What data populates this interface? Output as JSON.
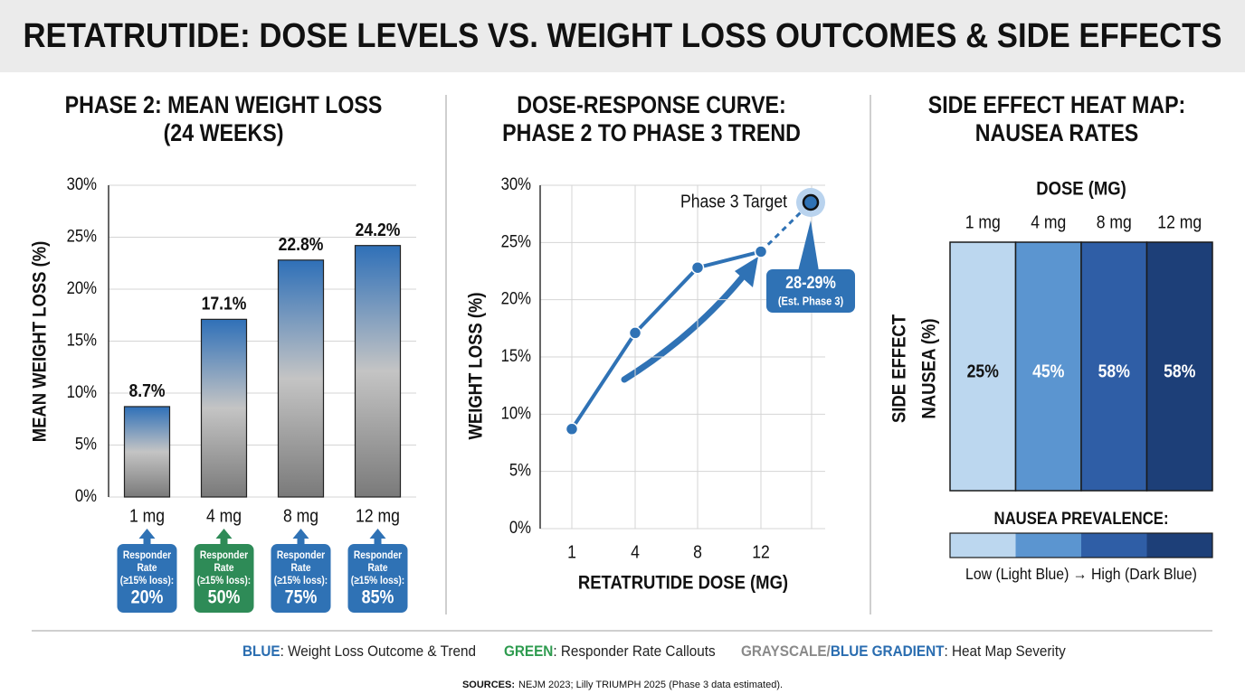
{
  "title": "RETATRUTIDE: DOSE LEVELS VS. WEIGHT LOSS OUTCOMES & SIDE EFFECTS",
  "chart_data": [
    {
      "type": "bar",
      "title": [
        "PHASE 2: MEAN WEIGHT LOSS",
        "(24 WEEKS)"
      ],
      "categories": [
        "1 mg",
        "4 mg",
        "8 mg",
        "12 mg"
      ],
      "values": [
        8.7,
        17.1,
        22.8,
        24.2
      ],
      "value_labels": [
        "8.7%",
        "17.1%",
        "22.8%",
        "24.2%"
      ],
      "ylabel": "MEAN WEIGHT LOSS (%)",
      "ylim": [
        0,
        30
      ],
      "yticks": [
        {
          "value": 0,
          "label": "0%"
        },
        {
          "value": 5,
          "label": "5%"
        },
        {
          "value": 10,
          "label": "10%"
        },
        {
          "value": 15,
          "label": "15%"
        },
        {
          "value": 20,
          "label": "20%"
        },
        {
          "value": 25,
          "label": "25%"
        },
        {
          "value": 30,
          "label": "30%"
        }
      ],
      "grid": true,
      "color": "#2f70b8",
      "callouts": {
        "label": [
          "Responder",
          "Rate",
          "(≥15% loss):"
        ],
        "values": [
          20,
          50,
          75,
          85
        ],
        "value_labels": [
          "20%",
          "50%",
          "75%",
          "85%"
        ],
        "colors": [
          "#2f72b5",
          "#2e8b57",
          "#2f72b5",
          "#2f72b5"
        ]
      }
    },
    {
      "type": "line",
      "title": [
        "DOSE-RESPONSE CURVE:",
        "PHASE 2 TO PHASE 3 TREND"
      ],
      "categories": [
        "1",
        "4",
        "8",
        "12"
      ],
      "values": [
        8.7,
        17.1,
        22.8,
        24.2
      ],
      "color": "#2f72b5",
      "xlabel": "RETATRUTIDE DOSE (MG)",
      "ylabel": "WEIGHT LOSS (%)",
      "ylim": [
        0,
        30
      ],
      "yticks": [
        {
          "value": 0,
          "label": "0%"
        },
        {
          "value": 5,
          "label": "5%"
        },
        {
          "value": 10,
          "label": "10%"
        },
        {
          "value": 15,
          "label": "15%"
        },
        {
          "value": 20,
          "label": "20%"
        },
        {
          "value": 25,
          "label": "25%"
        },
        {
          "value": 30,
          "label": "30%"
        }
      ],
      "grid": true,
      "projection": {
        "label": "Phase 3 Target",
        "value": 28.5,
        "value_label": "28-29%",
        "note": "(Est. Phase 3)"
      }
    },
    {
      "type": "heatmap",
      "title": [
        "SIDE EFFECT HEAT MAP:",
        "NAUSEA RATES"
      ],
      "xlabel": "DOSE (MG)",
      "categories": [
        "1 mg",
        "4 mg",
        "8 mg",
        "12 mg"
      ],
      "ylabel": [
        "SIDE EFFECT",
        "NAUSEA (%)"
      ],
      "values": [
        25,
        45,
        58,
        58
      ],
      "value_labels": [
        "25%",
        "45%",
        "58%",
        "58%"
      ],
      "colors": [
        "#bcd7ef",
        "#5b95d0",
        "#2f5ea6",
        "#1d3f78"
      ],
      "colorbar": {
        "title": "NAUSEA PREVALENCE:",
        "colors": [
          "#bcd7ef",
          "#5b95d0",
          "#2f5ea6",
          "#1d3f78"
        ],
        "caption": "Low (Light Blue) → High (Dark Blue)"
      }
    }
  ],
  "legend": [
    {
      "parts": [
        {
          "text": "BLUE",
          "color": "#2a6db0"
        }
      ],
      "text": ": Weight Loss Outcome & Trend"
    },
    {
      "parts": [
        {
          "text": "GREEN",
          "color": "#2e9b4f"
        }
      ],
      "text": ": Responder Rate Callouts"
    },
    {
      "parts": [
        {
          "text": "GRAYSCALE/",
          "color": "#8a8a8a"
        },
        {
          "text": "BLUE GRADIENT",
          "color": "#2a6db0"
        }
      ],
      "text": ": Heat Map Severity"
    }
  ],
  "sources": {
    "label": "SOURCES:",
    "text": "NEJM 2023; Lilly TRIUMPH 2025 (Phase 3 data estimated)."
  }
}
